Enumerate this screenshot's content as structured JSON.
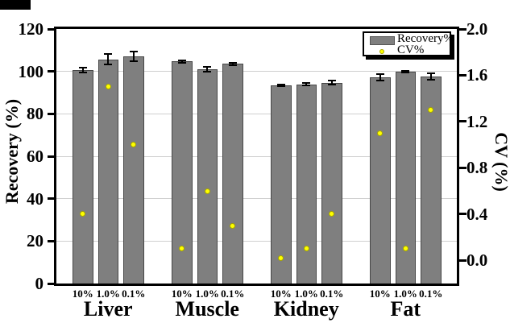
{
  "chart_data": {
    "type": "bar",
    "title": "",
    "groups": [
      "Liver",
      "Muscle",
      "Kidney",
      "Fat"
    ],
    "levels": [
      "10%",
      "1.0%",
      "0.1%"
    ],
    "series": [
      {
        "name": "Recovery%",
        "type": "bar",
        "axis": "left",
        "values": [
          [
            100.7,
            105.7,
            107.1
          ],
          [
            104.7,
            101.0,
            103.5
          ],
          [
            93.5,
            93.9,
            94.7
          ],
          [
            97.2,
            99.8,
            97.6
          ]
        ],
        "errors": [
          [
            1.1,
            2.4,
            2.2
          ],
          [
            0.5,
            1.0,
            0.5
          ],
          [
            0.3,
            0.5,
            1.0
          ],
          [
            1.5,
            0.3,
            1.4
          ]
        ]
      },
      {
        "name": "CV%",
        "type": "scatter",
        "axis": "right",
        "values": [
          [
            0.4,
            1.5,
            1.0
          ],
          [
            0.1,
            0.6,
            0.3
          ],
          [
            0.02,
            0.1,
            0.4
          ],
          [
            1.1,
            0.1,
            1.3
          ]
        ]
      }
    ],
    "left_axis": {
      "label": "Recovery (%)",
      "min": 0,
      "max": 120,
      "ticks": [
        0,
        20,
        40,
        60,
        80,
        100,
        120
      ]
    },
    "right_axis": {
      "label": "CV (%)",
      "min": -0.2,
      "max": 2.0,
      "tick_labels": [
        "0.0",
        "0.4",
        "0.8",
        "1.2",
        "1.6",
        "2.0"
      ]
    },
    "grid": true,
    "legend": {
      "position": "top-right"
    }
  },
  "colors": {
    "bar": "#7f7f7f",
    "bar_border": "#474747",
    "cv_dot": "#ffff00",
    "cv_dot_border": "#a6a600",
    "grid": "#cfcfcf",
    "axis": "#000000",
    "error_bar": "#000000",
    "legend_bg": "#ffffff",
    "legend_shadow": "#000000",
    "corner_mark": "#000000"
  }
}
